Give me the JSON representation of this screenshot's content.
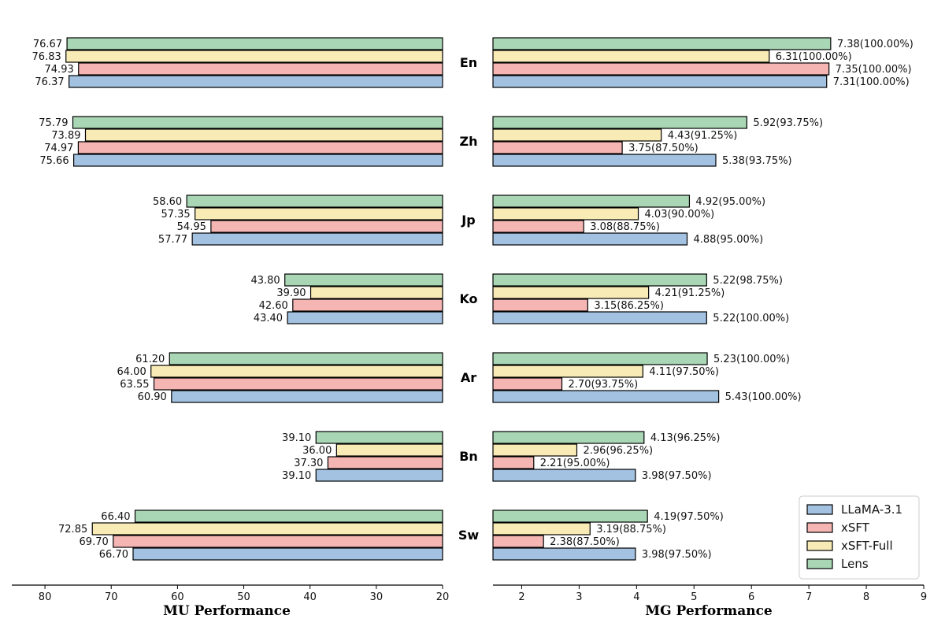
{
  "chart_data": {
    "type": "bar",
    "orientation": "horizontal",
    "languages": [
      "En",
      "Zh",
      "Jp",
      "Ko",
      "Ar",
      "Bn",
      "Sw"
    ],
    "series": [
      {
        "name": "LLaMA-3.1",
        "color": "#a3c1e0"
      },
      {
        "name": "xSFT",
        "color": "#f4b5b3"
      },
      {
        "name": "xSFT-Full",
        "color": "#f8ebb5"
      },
      {
        "name": "Lens",
        "color": "#a9d6b5"
      }
    ],
    "mu": {
      "xlabel": "MU Performance",
      "xlim": [
        85,
        20
      ],
      "ticks": [
        80,
        70,
        60,
        50,
        40,
        30,
        20
      ],
      "data": {
        "Lens": [
          76.67,
          75.79,
          58.6,
          43.8,
          61.2,
          39.1,
          66.4
        ],
        "xSFT-Full": [
          76.83,
          73.89,
          57.35,
          39.9,
          64.0,
          36.0,
          72.85
        ],
        "xSFT": [
          74.93,
          74.97,
          54.95,
          42.6,
          63.55,
          37.3,
          69.7
        ],
        "LLaMA-3.1": [
          76.37,
          75.66,
          57.77,
          43.4,
          60.9,
          39.1,
          66.7
        ]
      },
      "labels": {
        "Lens": [
          "76.67",
          "75.79",
          "58.60",
          "43.80",
          "61.20",
          "39.10",
          "66.40"
        ],
        "xSFT-Full": [
          "76.83",
          "73.89",
          "57.35",
          "39.90",
          "64.00",
          "36.00",
          "72.85"
        ],
        "xSFT": [
          "74.93",
          "74.97",
          "54.95",
          "42.60",
          "63.55",
          "37.30",
          "69.70"
        ],
        "LLaMA-3.1": [
          "76.37",
          "75.66",
          "57.77",
          "43.40",
          "60.90",
          "39.10",
          "66.70"
        ]
      }
    },
    "mg": {
      "xlabel": "MG Performance",
      "xlim": [
        1.5,
        9
      ],
      "ticks": [
        2,
        3,
        4,
        5,
        6,
        7,
        8,
        9
      ],
      "data": {
        "Lens": [
          7.38,
          5.92,
          4.92,
          5.22,
          5.23,
          4.13,
          4.19
        ],
        "xSFT-Full": [
          6.31,
          4.43,
          4.03,
          4.21,
          4.11,
          2.96,
          3.19
        ],
        "xSFT": [
          7.35,
          3.75,
          3.08,
          3.15,
          2.7,
          2.21,
          2.38
        ],
        "LLaMA-3.1": [
          7.31,
          5.38,
          4.88,
          5.22,
          5.43,
          3.98,
          3.98
        ]
      },
      "labels": {
        "Lens": [
          "7.38(100.00%)",
          "5.92(93.75%)",
          "4.92(95.00%)",
          "5.22(98.75%)",
          "5.23(100.00%)",
          "4.13(96.25%)",
          "4.19(97.50%)"
        ],
        "xSFT-Full": [
          "6.31(100.00%)",
          "4.43(91.25%)",
          "4.03(90.00%)",
          "4.21(91.25%)",
          "4.11(97.50%)",
          "2.96(96.25%)",
          "3.19(88.75%)"
        ],
        "xSFT": [
          "7.35(100.00%)",
          "3.75(87.50%)",
          "3.08(88.75%)",
          "3.15(86.25%)",
          "2.70(93.75%)",
          "2.21(95.00%)",
          "2.38(87.50%)"
        ],
        "LLaMA-3.1": [
          "7.31(100.00%)",
          "5.38(93.75%)",
          "4.88(95.00%)",
          "5.22(100.00%)",
          "5.43(100.00%)",
          "3.98(97.50%)",
          "3.98(97.50%)"
        ]
      }
    },
    "legend": {
      "placement": "bottom-right",
      "entries": [
        "LLaMA-3.1",
        "xSFT",
        "xSFT-Full",
        "Lens"
      ]
    }
  }
}
